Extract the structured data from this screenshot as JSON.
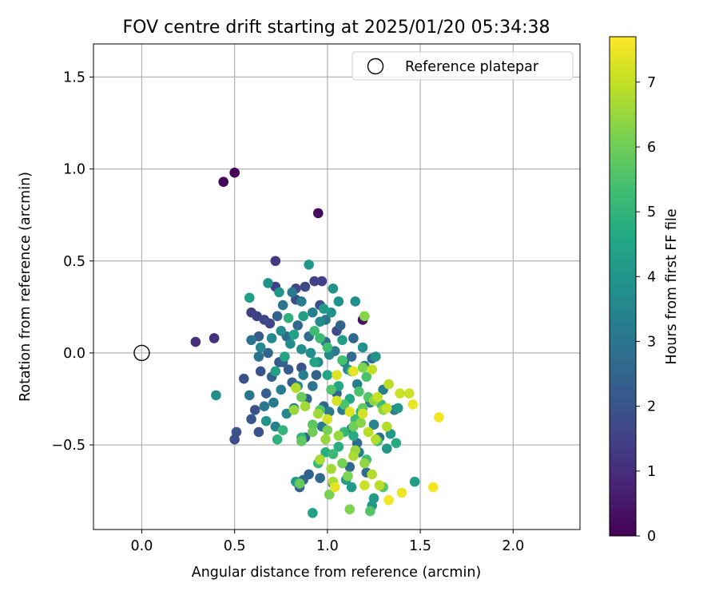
{
  "chart_data": {
    "type": "scatter",
    "title": "FOV centre drift starting at 2025/01/20 05:34:38",
    "xlabel": "Angular distance from reference (arcmin)",
    "ylabel": "Rotation from reference (arcmin)",
    "xlim": [
      -0.26,
      2.36
    ],
    "ylim": [
      -0.96,
      1.68
    ],
    "xticks": [
      0.0,
      0.5,
      1.0,
      1.5,
      2.0
    ],
    "xtick_labels": [
      "0.0",
      "0.5",
      "1.0",
      "1.5",
      "2.0"
    ],
    "yticks": [
      -0.5,
      0.0,
      0.5,
      1.0,
      1.5
    ],
    "ytick_labels": [
      "−0.5",
      "0.0",
      "0.5",
      "1.0",
      "1.5"
    ],
    "grid": true,
    "legend": {
      "placement": "top-right",
      "entries": [
        {
          "label": "Reference platepar",
          "marker": "open-circle"
        }
      ]
    },
    "reference_point": {
      "x": 0.0,
      "y": 0.0
    },
    "colorbar": {
      "label": "Hours from first FF file",
      "range": [
        0,
        7.7
      ],
      "ticks": [
        0,
        1,
        2,
        3,
        4,
        5,
        6,
        7
      ],
      "tick_labels": [
        "0",
        "1",
        "2",
        "3",
        "4",
        "5",
        "6",
        "7"
      ],
      "colormap": "viridis"
    },
    "points": [
      [
        0.44,
        0.93,
        0.1
      ],
      [
        0.5,
        0.98,
        0.1
      ],
      [
        0.95,
        0.76,
        0.2
      ],
      [
        1.19,
        0.18,
        0.4
      ],
      [
        0.29,
        0.06,
        1.0
      ],
      [
        0.39,
        0.08,
        1.1
      ],
      [
        0.72,
        0.5,
        1.3
      ],
      [
        0.59,
        0.22,
        1.4
      ],
      [
        0.72,
        0.36,
        1.4
      ],
      [
        0.93,
        0.39,
        1.5
      ],
      [
        0.97,
        0.39,
        1.5
      ],
      [
        0.62,
        0.2,
        1.5
      ],
      [
        0.66,
        0.18,
        1.6
      ],
      [
        0.69,
        0.16,
        1.6
      ],
      [
        0.83,
        0.35,
        1.6
      ],
      [
        0.88,
        0.36,
        1.7
      ],
      [
        0.83,
        0.29,
        1.8
      ],
      [
        0.96,
        0.26,
        1.8
      ],
      [
        1.05,
        0.12,
        1.7
      ],
      [
        0.55,
        -0.14,
        1.9
      ],
      [
        0.51,
        -0.43,
        1.9
      ],
      [
        0.5,
        -0.47,
        1.8
      ],
      [
        0.63,
        -0.43,
        1.9
      ],
      [
        0.61,
        -0.31,
        2.0
      ],
      [
        0.59,
        -0.36,
        2.1
      ],
      [
        0.64,
        -0.1,
        2.0
      ],
      [
        0.63,
        0.09,
        2.2
      ],
      [
        0.74,
        -0.05,
        2.1
      ],
      [
        0.79,
        -0.09,
        2.2
      ],
      [
        0.86,
        -0.08,
        2.0
      ],
      [
        0.88,
        -0.46,
        2.3
      ],
      [
        0.85,
        -0.73,
        2.5
      ],
      [
        0.87,
        -0.69,
        2.6
      ],
      [
        0.9,
        -0.66,
        2.4
      ],
      [
        0.96,
        -0.68,
        2.6
      ],
      [
        1.03,
        -0.71,
        2.8
      ],
      [
        1.12,
        -0.62,
        2.6
      ],
      [
        1.16,
        -0.49,
        2.7
      ],
      [
        1.21,
        -0.65,
        2.7
      ],
      [
        1.28,
        -0.46,
        2.8
      ],
      [
        1.24,
        -0.03,
        2.7
      ],
      [
        1.13,
        -0.02,
        2.6
      ],
      [
        1.05,
        -0.22,
        2.5
      ],
      [
        0.98,
        -0.29,
        2.6
      ],
      [
        0.94,
        -0.12,
        2.4
      ],
      [
        0.89,
        -0.25,
        2.5
      ],
      [
        0.81,
        -0.16,
        2.3
      ],
      [
        0.76,
        -0.05,
        2.4
      ],
      [
        0.7,
        -0.13,
        2.4
      ],
      [
        0.67,
        -0.22,
        2.3
      ],
      [
        0.68,
        0.0,
        2.5
      ],
      [
        0.73,
        0.2,
        2.4
      ],
      [
        0.78,
        0.09,
        2.6
      ],
      [
        0.84,
        0.15,
        2.6
      ],
      [
        0.9,
        0.09,
        2.8
      ],
      [
        0.99,
        0.06,
        2.7
      ],
      [
        1.07,
        0.15,
        2.5
      ],
      [
        1.14,
        0.08,
        2.6
      ],
      [
        0.59,
        0.07,
        2.9
      ],
      [
        0.63,
        -0.02,
        3.0
      ],
      [
        0.58,
        -0.23,
        3.0
      ],
      [
        0.66,
        -0.29,
        3.1
      ],
      [
        0.71,
        -0.27,
        3.1
      ],
      [
        0.75,
        -0.2,
        3.2
      ],
      [
        0.82,
        -0.3,
        3.2
      ],
      [
        0.87,
        -0.12,
        3.3
      ],
      [
        0.92,
        -0.18,
        3.0
      ],
      [
        0.97,
        -0.4,
        3.1
      ],
      [
        1.01,
        -0.32,
        3.2
      ],
      [
        1.08,
        -0.31,
        3.1
      ],
      [
        1.13,
        -0.41,
        3.3
      ],
      [
        1.17,
        -0.54,
        3.2
      ],
      [
        1.23,
        -0.27,
        3.4
      ],
      [
        1.3,
        -0.2,
        3.3
      ],
      [
        1.36,
        -0.31,
        3.2
      ],
      [
        0.76,
        0.26,
        3.0
      ],
      [
        0.81,
        0.33,
        3.1
      ],
      [
        0.86,
        0.28,
        3.2
      ],
      [
        0.92,
        0.22,
        3.3
      ],
      [
        0.99,
        0.18,
        3.0
      ],
      [
        1.04,
        0.01,
        3.1
      ],
      [
        1.09,
        -0.05,
        3.2
      ],
      [
        1.16,
        -0.17,
        3.3
      ],
      [
        1.2,
        -0.07,
        3.2
      ],
      [
        1.25,
        -0.39,
        3.4
      ],
      [
        0.72,
        -0.4,
        3.4
      ],
      [
        0.78,
        -0.33,
        3.5
      ],
      [
        0.84,
        -0.18,
        3.5
      ],
      [
        0.95,
        -0.05,
        3.6
      ],
      [
        1.01,
        -0.01,
        3.6
      ],
      [
        1.11,
        -0.09,
        3.6
      ],
      [
        0.64,
        0.03,
        3.5
      ],
      [
        0.7,
        0.08,
        3.6
      ],
      [
        0.75,
        0.12,
        3.7
      ],
      [
        0.8,
        0.05,
        3.7
      ],
      [
        0.86,
        0.02,
        3.8
      ],
      [
        0.91,
        0.0,
        3.8
      ],
      [
        0.96,
        0.17,
        3.7
      ],
      [
        1.02,
        0.22,
        3.9
      ],
      [
        1.06,
        0.28,
        3.9
      ],
      [
        1.15,
        0.28,
        3.8
      ],
      [
        1.19,
        0.03,
        3.9
      ],
      [
        1.26,
        -0.02,
        4.0
      ],
      [
        1.32,
        -0.52,
        4.1
      ],
      [
        1.34,
        -0.44,
        4.1
      ],
      [
        1.38,
        -0.3,
        4.1
      ],
      [
        1.24,
        -0.83,
        4.1
      ],
      [
        1.25,
        -0.79,
        4.2
      ],
      [
        1.47,
        -0.7,
        4.3
      ],
      [
        1.13,
        -0.73,
        4.2
      ],
      [
        1.1,
        -0.69,
        4.3
      ],
      [
        0.92,
        -0.87,
        4.4
      ],
      [
        0.83,
        -0.7,
        4.2
      ],
      [
        0.4,
        -0.23,
        3.8
      ],
      [
        0.67,
        -0.37,
        3.9
      ],
      [
        0.68,
        0.38,
        3.9
      ],
      [
        0.74,
        0.33,
        4.0
      ],
      [
        0.9,
        0.48,
        4.1
      ],
      [
        1.03,
        0.35,
        4.0
      ],
      [
        0.98,
        0.24,
        4.2
      ],
      [
        1.08,
        0.07,
        4.3
      ],
      [
        0.87,
        0.2,
        4.3
      ],
      [
        0.82,
        0.1,
        4.4
      ],
      [
        0.77,
        -0.02,
        4.5
      ],
      [
        0.72,
        -0.1,
        4.4
      ],
      [
        0.93,
        -0.05,
        4.5
      ],
      [
        1.0,
        -0.12,
        4.5
      ],
      [
        1.06,
        -0.18,
        4.6
      ],
      [
        1.12,
        -0.25,
        4.6
      ],
      [
        1.18,
        -0.32,
        4.7
      ],
      [
        1.14,
        -0.45,
        4.7
      ],
      [
        1.06,
        -0.51,
        4.8
      ],
      [
        0.99,
        -0.54,
        4.8
      ],
      [
        1.37,
        -0.49,
        4.7
      ],
      [
        0.58,
        0.3,
        4.4
      ],
      [
        0.79,
        0.19,
        4.9
      ],
      [
        0.73,
        -0.47,
        4.9
      ],
      [
        0.76,
        -0.42,
        5.0
      ],
      [
        0.86,
        -0.46,
        5.1
      ],
      [
        0.95,
        -0.6,
        5.1
      ],
      [
        1.03,
        -0.55,
        5.2
      ],
      [
        1.09,
        -0.43,
        5.1
      ],
      [
        1.15,
        -0.36,
        5.2
      ],
      [
        1.21,
        -0.58,
        5.3
      ],
      [
        1.29,
        -0.28,
        5.3
      ],
      [
        1.27,
        -0.48,
        5.4
      ],
      [
        0.93,
        0.12,
        5.3
      ],
      [
        0.96,
        0.08,
        5.2
      ],
      [
        1.0,
        0.03,
        5.3
      ],
      [
        1.08,
        -0.04,
        5.4
      ],
      [
        1.13,
        -0.1,
        5.4
      ],
      [
        1.21,
        -0.13,
        5.5
      ],
      [
        1.09,
        -0.28,
        5.5
      ],
      [
        1.02,
        -0.2,
        5.6
      ],
      [
        0.96,
        -0.31,
        5.6
      ],
      [
        0.92,
        -0.39,
        5.7
      ],
      [
        1.17,
        -0.21,
        5.5
      ],
      [
        1.22,
        -0.24,
        5.6
      ],
      [
        1.23,
        -0.86,
        5.6
      ],
      [
        1.3,
        -0.73,
        5.7
      ],
      [
        1.19,
        -0.3,
        5.8
      ],
      [
        0.86,
        -0.48,
        5.8
      ],
      [
        0.86,
        -0.24,
        5.9
      ],
      [
        0.85,
        -0.71,
        5.9
      ],
      [
        0.92,
        -0.43,
        6.0
      ],
      [
        1.01,
        -0.77,
        6.1
      ],
      [
        1.0,
        -0.42,
        6.1
      ],
      [
        1.14,
        -0.4,
        6.0
      ],
      [
        1.08,
        -0.6,
        6.1
      ],
      [
        1.11,
        -0.67,
        6.2
      ],
      [
        1.12,
        -0.85,
        6.2
      ],
      [
        1.19,
        -0.08,
        6.2
      ],
      [
        1.2,
        0.2,
        6.3
      ],
      [
        1.18,
        -0.38,
        6.3
      ],
      [
        1.25,
        -0.26,
        6.4
      ],
      [
        1.3,
        -0.31,
        6.4
      ],
      [
        1.2,
        -0.6,
        6.4
      ],
      [
        1.15,
        -0.53,
        6.5
      ],
      [
        1.06,
        -0.45,
        6.5
      ],
      [
        0.99,
        -0.47,
        6.5
      ],
      [
        0.95,
        -0.33,
        6.6
      ],
      [
        0.82,
        -0.31,
        6.5
      ],
      [
        0.88,
        -0.29,
        6.6
      ],
      [
        1.02,
        -0.63,
        6.6
      ],
      [
        1.03,
        -0.7,
        6.7
      ],
      [
        0.96,
        -0.58,
        6.7
      ],
      [
        1.14,
        -0.56,
        6.7
      ],
      [
        1.24,
        -0.66,
        6.8
      ],
      [
        1.26,
        -0.47,
        6.8
      ],
      [
        1.32,
        -0.4,
        6.8
      ],
      [
        1.28,
        -0.72,
        6.9
      ],
      [
        1.33,
        -0.17,
        6.9
      ],
      [
        1.24,
        -0.09,
        7.0
      ],
      [
        1.22,
        -0.43,
        6.9
      ],
      [
        1.27,
        -0.24,
        7.0
      ],
      [
        1.32,
        -0.3,
        7.0
      ],
      [
        1.39,
        -0.22,
        7.1
      ],
      [
        1.44,
        -0.22,
        7.1
      ],
      [
        1.2,
        -0.72,
        7.1
      ],
      [
        0.83,
        -0.19,
        6.8
      ],
      [
        1.0,
        -0.36,
        7.2
      ],
      [
        1.05,
        -0.26,
        7.2
      ],
      [
        1.12,
        -0.32,
        7.3
      ],
      [
        1.19,
        -0.33,
        7.2
      ],
      [
        1.05,
        -0.12,
        7.3
      ],
      [
        1.14,
        -0.1,
        7.4
      ],
      [
        1.4,
        -0.76,
        7.5
      ],
      [
        1.46,
        -0.28,
        7.5
      ],
      [
        1.57,
        -0.73,
        7.6
      ],
      [
        1.6,
        -0.35,
        7.6
      ],
      [
        1.33,
        -0.8,
        7.6
      ],
      [
        1.04,
        -0.73,
        7.4
      ]
    ]
  }
}
